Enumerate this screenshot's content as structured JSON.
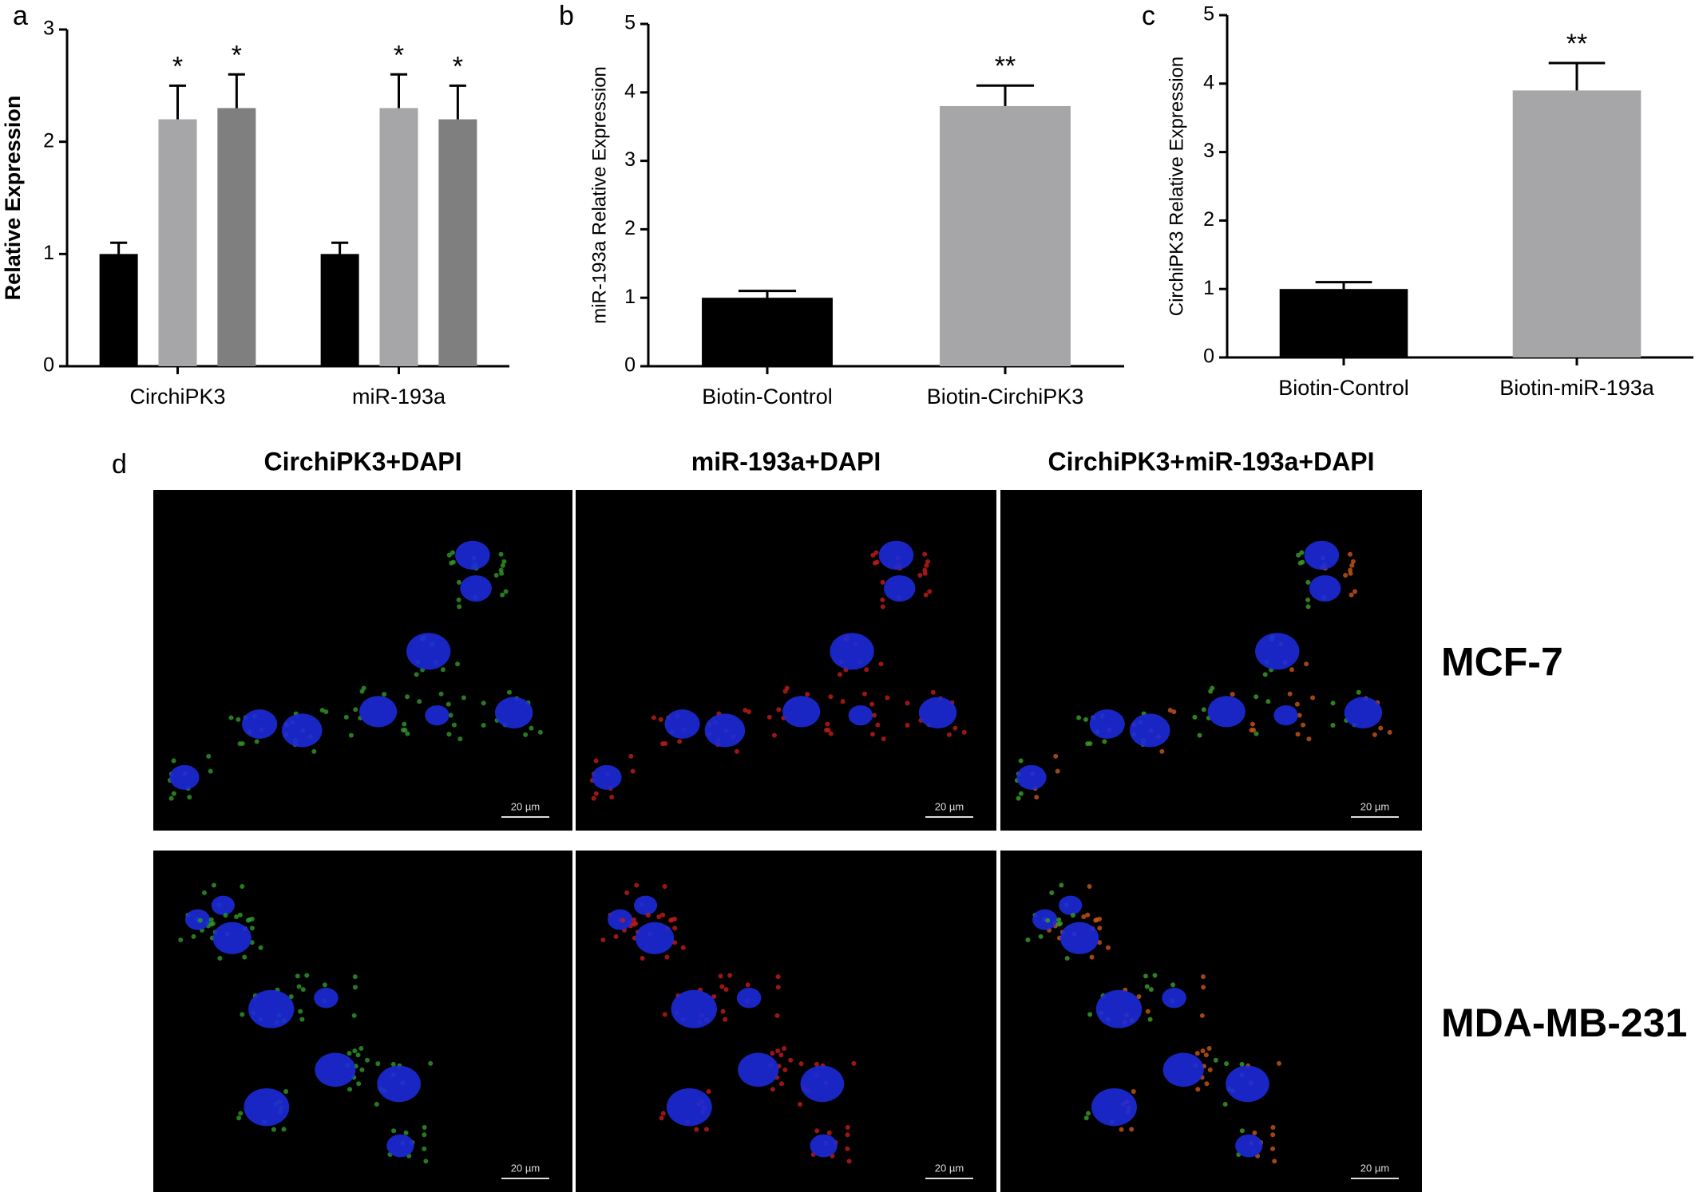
{
  "chart_data": [
    {
      "type": "bar",
      "panel": "a",
      "ylabel": "Relative Expression",
      "categories": [
        "CirchiPK3",
        "miR-193a"
      ],
      "series": [
        {
          "color": "#000000",
          "values": [
            1,
            1
          ],
          "errors": [
            0.1,
            0.1
          ],
          "annotations": [
            null,
            null
          ]
        },
        {
          "color": "#a6a6a8",
          "values": [
            2.2,
            2.3
          ],
          "errors": [
            0.3,
            0.3
          ],
          "annotations": [
            "*",
            "*"
          ]
        },
        {
          "color": "#7f7f7f",
          "values": [
            2.3,
            2.2
          ],
          "errors": [
            0.3,
            0.3
          ],
          "annotations": [
            "*",
            "*"
          ]
        }
      ],
      "ylim": [
        0,
        3
      ],
      "yticks": [
        0,
        1,
        2,
        3
      ]
    },
    {
      "type": "bar",
      "panel": "b",
      "ylabel": "miR-193a Relative Expression",
      "categories": [
        "Biotin-Control",
        "Biotin-CirchiPK3"
      ],
      "values": [
        1,
        3.8
      ],
      "errors": [
        0.1,
        0.3
      ],
      "colors": [
        "#000000",
        "#a6a6a8"
      ],
      "annotations": [
        null,
        "**"
      ],
      "ylim": [
        0,
        5
      ],
      "yticks": [
        0,
        1,
        2,
        3,
        4,
        5
      ]
    },
    {
      "type": "bar",
      "panel": "c",
      "ylabel": "CirchiPK3 Relative Expression",
      "categories": [
        "Biotin-Control",
        "Biotin-miR-193a"
      ],
      "values": [
        1,
        3.9
      ],
      "errors": [
        0.1,
        0.4
      ],
      "colors": [
        "#000000",
        "#a6a6a8"
      ],
      "annotations": [
        null,
        "**"
      ],
      "ylim": [
        0,
        5
      ],
      "yticks": [
        0,
        1,
        2,
        3,
        4,
        5
      ]
    }
  ],
  "panel_d": {
    "panel": "d",
    "columns": [
      "CirchiPK3+DAPI",
      "miR-193a+DAPI",
      "CirchiPK3+miR-193a+DAPI"
    ],
    "rows": [
      "MCF-7",
      "MDA-MB-231"
    ],
    "scale_bar": "20 µm"
  }
}
